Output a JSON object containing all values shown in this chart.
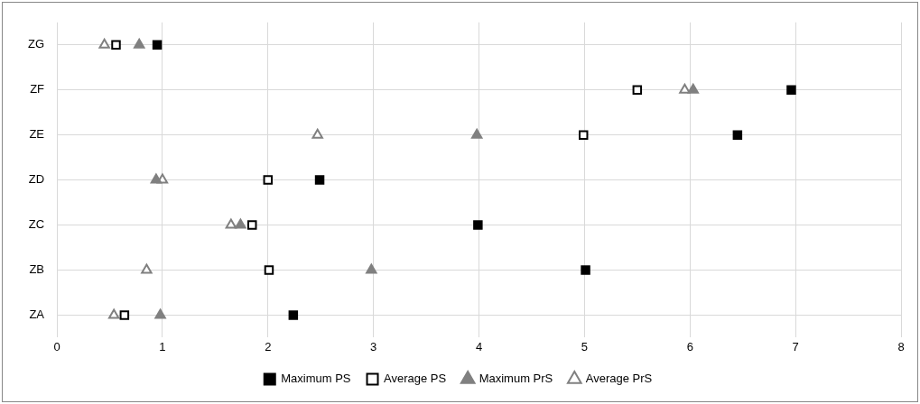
{
  "chart_data": {
    "type": "scatter",
    "orientation": "horizontal",
    "categories": [
      "ZG",
      "ZF",
      "ZE",
      "ZD",
      "ZC",
      "ZB",
      "ZA"
    ],
    "xlim": [
      0,
      8
    ],
    "xticks": [
      0,
      1,
      2,
      3,
      4,
      5,
      6,
      7,
      8
    ],
    "grid": true,
    "legend": "bottom",
    "series": [
      {
        "name": "Maximum PS",
        "color": "#000000",
        "marker": "square",
        "values": [
          0.95,
          6.96,
          6.45,
          2.49,
          3.99,
          5.01,
          2.24
        ]
      },
      {
        "name": "Average PS",
        "color": "#000000",
        "marker": "square-open",
        "values": [
          0.56,
          5.5,
          4.99,
          2.0,
          1.85,
          2.01,
          0.64
        ]
      },
      {
        "name": "Maximum PrS",
        "color": "#808080",
        "marker": "triangle",
        "values": [
          0.78,
          6.03,
          3.98,
          0.94,
          1.74,
          2.98,
          0.98
        ]
      },
      {
        "name": "Average PrS",
        "color": "#808080",
        "marker": "triangle-open",
        "values": [
          0.45,
          5.95,
          2.47,
          1.0,
          1.65,
          0.85,
          0.54
        ]
      }
    ]
  }
}
